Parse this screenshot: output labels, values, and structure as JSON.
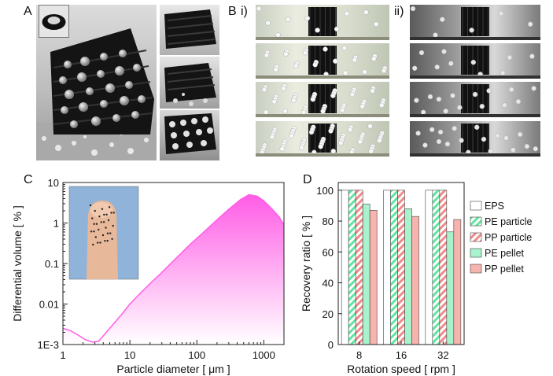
{
  "panels": {
    "a": "A",
    "b": "B",
    "b_i": "i)",
    "b_ii": "ii)",
    "c": "C",
    "d": "D"
  },
  "colors": {
    "pink": "#ff5ce6",
    "pe_green": "#5fe6a0",
    "pp_red": "#f08a88",
    "photo_dark": "#1a1a1a"
  },
  "chart_data": [
    {
      "type": "area",
      "panel": "C",
      "xlabel": "Particle diameter [ μm ]",
      "ylabel": "Differential volume [ % ]",
      "xscale": "log",
      "yscale": "log",
      "xlim": [
        1,
        2000
      ],
      "ylim": [
        0.001,
        10
      ],
      "xticks": [
        "1",
        "10",
        "100",
        "1000"
      ],
      "yticks": [
        "1E-3",
        "0.01",
        "0.1",
        "1",
        "10"
      ],
      "x": [
        1,
        1.3,
        1.7,
        2.2,
        2.8,
        3.4,
        4.2,
        5.5,
        7.5,
        10,
        15,
        20,
        30,
        50,
        80,
        120,
        200,
        300,
        450,
        600,
        800,
        1000,
        1300,
        1700,
        2000
      ],
      "y": [
        0.0025,
        0.0022,
        0.0017,
        0.0013,
        0.00115,
        0.0012,
        0.0018,
        0.003,
        0.0055,
        0.01,
        0.02,
        0.032,
        0.06,
        0.14,
        0.3,
        0.55,
        1.2,
        2.2,
        3.8,
        5.0,
        4.6,
        3.5,
        2.3,
        1.4,
        0.9
      ]
    },
    {
      "type": "bar",
      "panel": "D",
      "xlabel": "Rotation speed [ rpm ]",
      "ylabel": "Recovery ratio [ % ]",
      "ylim": [
        0,
        105
      ],
      "yticks": [
        "0",
        "20",
        "40",
        "60",
        "80",
        "100"
      ],
      "categories": [
        "8",
        "16",
        "32"
      ],
      "legend_position": "right",
      "series": [
        {
          "name": "EPS",
          "values": [
            100,
            100,
            100
          ],
          "color": "#ffffff",
          "pattern": "none"
        },
        {
          "name": "PE particle",
          "values": [
            100,
            100,
            100
          ],
          "color": "#5fe6a0",
          "pattern": "hatch"
        },
        {
          "name": "PP particle",
          "values": [
            100,
            100,
            100
          ],
          "color": "#f08a88",
          "pattern": "hatch"
        },
        {
          "name": "PE pellet",
          "values": [
            91,
            88,
            73
          ],
          "color": "#a8f2cc",
          "pattern": "none"
        },
        {
          "name": "PP pellet",
          "values": [
            87,
            83,
            81
          ],
          "color": "#f7b3ae",
          "pattern": "none"
        }
      ]
    }
  ]
}
